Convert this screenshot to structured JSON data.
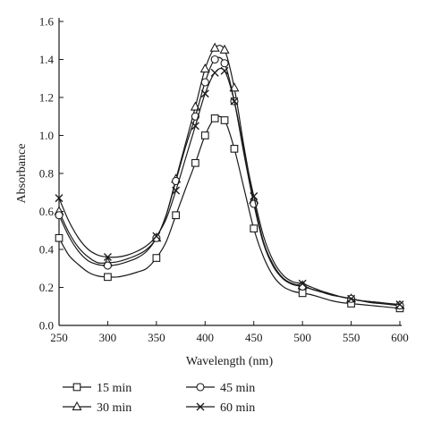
{
  "chart_data": {
    "type": "line",
    "title": "",
    "xlabel": "Wavelength (nm)",
    "ylabel": "Absorbance",
    "xlim": [
      250,
      600
    ],
    "ylim": [
      0,
      1.6
    ],
    "xticks": [
      "250",
      "300",
      "350",
      "400",
      "450",
      "500",
      "550",
      "600"
    ],
    "yticks": [
      "0.0",
      "0.2",
      "0.4",
      "0.6",
      "0.8",
      "1.0",
      "1.2",
      "1.4",
      "1.6"
    ],
    "grid": false,
    "legend_position": "bottom",
    "series": [
      {
        "name": "15 min",
        "marker": "square",
        "x": [
          250,
          260,
          270,
          280,
          290,
          300,
          310,
          320,
          330,
          340,
          350,
          360,
          370,
          380,
          390,
          400,
          410,
          420,
          430,
          440,
          450,
          460,
          470,
          480,
          490,
          500,
          510,
          520,
          530,
          540,
          550,
          560,
          570,
          580,
          590,
          600
        ],
        "y": [
          0.46,
          0.37,
          0.32,
          0.28,
          0.26,
          0.255,
          0.255,
          0.265,
          0.28,
          0.3,
          0.355,
          0.44,
          0.58,
          0.72,
          0.855,
          1.0,
          1.09,
          1.08,
          0.93,
          0.72,
          0.51,
          0.36,
          0.26,
          0.205,
          0.18,
          0.17,
          0.16,
          0.145,
          0.13,
          0.12,
          0.115,
          0.11,
          0.105,
          0.1,
          0.095,
          0.09
        ],
        "marked_x": [
          250,
          300,
          350,
          370,
          390,
          400,
          410,
          420,
          430,
          450,
          500,
          550,
          600
        ]
      },
      {
        "name": "30 min",
        "marker": "triangle",
        "x": [
          250,
          260,
          270,
          280,
          290,
          300,
          310,
          320,
          330,
          340,
          350,
          360,
          370,
          380,
          390,
          400,
          410,
          420,
          430,
          440,
          450,
          460,
          470,
          480,
          490,
          500,
          510,
          520,
          530,
          540,
          550,
          560,
          570,
          580,
          590,
          600
        ],
        "y": [
          0.6,
          0.49,
          0.41,
          0.36,
          0.33,
          0.33,
          0.335,
          0.35,
          0.37,
          0.4,
          0.46,
          0.58,
          0.77,
          0.96,
          1.15,
          1.35,
          1.46,
          1.45,
          1.25,
          0.94,
          0.66,
          0.44,
          0.32,
          0.25,
          0.22,
          0.21,
          0.19,
          0.175,
          0.16,
          0.15,
          0.14,
          0.13,
          0.125,
          0.12,
          0.11,
          0.105
        ],
        "marked_x": [
          250,
          300,
          350,
          370,
          390,
          400,
          410,
          420,
          430,
          450,
          500,
          550,
          600
        ]
      },
      {
        "name": "45 min",
        "marker": "circle",
        "x": [
          250,
          260,
          270,
          280,
          290,
          300,
          310,
          320,
          330,
          340,
          350,
          360,
          370,
          380,
          390,
          400,
          410,
          420,
          430,
          440,
          450,
          460,
          470,
          480,
          490,
          500,
          510,
          520,
          530,
          540,
          550,
          560,
          570,
          580,
          590,
          600
        ],
        "y": [
          0.58,
          0.47,
          0.39,
          0.34,
          0.32,
          0.315,
          0.32,
          0.335,
          0.355,
          0.39,
          0.46,
          0.58,
          0.76,
          0.94,
          1.1,
          1.28,
          1.4,
          1.38,
          1.18,
          0.9,
          0.64,
          0.43,
          0.31,
          0.245,
          0.215,
          0.205,
          0.19,
          0.175,
          0.16,
          0.15,
          0.14,
          0.13,
          0.12,
          0.115,
          0.11,
          0.105
        ],
        "marked_x": [
          250,
          300,
          350,
          370,
          390,
          400,
          410,
          420,
          430,
          450,
          500,
          550,
          600
        ]
      },
      {
        "name": "60 min",
        "marker": "x",
        "x": [
          250,
          260,
          270,
          280,
          290,
          300,
          310,
          320,
          330,
          340,
          350,
          360,
          370,
          380,
          390,
          400,
          410,
          420,
          430,
          440,
          450,
          460,
          470,
          480,
          490,
          500,
          510,
          520,
          530,
          540,
          550,
          560,
          570,
          580,
          590,
          600
        ],
        "y": [
          0.67,
          0.55,
          0.46,
          0.4,
          0.37,
          0.36,
          0.36,
          0.37,
          0.39,
          0.42,
          0.47,
          0.56,
          0.71,
          0.88,
          1.05,
          1.22,
          1.33,
          1.34,
          1.18,
          0.92,
          0.68,
          0.47,
          0.34,
          0.265,
          0.23,
          0.22,
          0.2,
          0.18,
          0.165,
          0.15,
          0.14,
          0.13,
          0.125,
          0.12,
          0.115,
          0.11
        ],
        "marked_x": [
          250,
          300,
          350,
          370,
          390,
          400,
          410,
          420,
          430,
          450,
          500,
          550,
          600
        ]
      }
    ]
  }
}
